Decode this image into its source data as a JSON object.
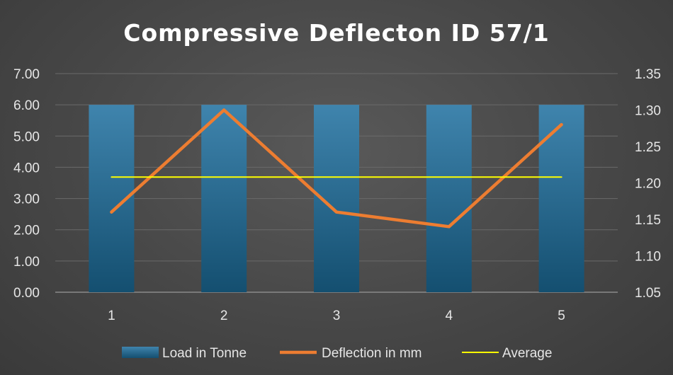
{
  "chart_data": {
    "type": "bar",
    "title": "Compressive Deflecton ID 57/1",
    "categories": [
      "1",
      "2",
      "3",
      "4",
      "5"
    ],
    "y_left": {
      "min": 0,
      "max": 7,
      "step": 1,
      "ticks": [
        "0.00",
        "1.00",
        "2.00",
        "3.00",
        "4.00",
        "5.00",
        "6.00",
        "7.00"
      ]
    },
    "y_right": {
      "min": 1.05,
      "max": 1.35,
      "step": 0.05,
      "ticks": [
        "1.05",
        "1.10",
        "1.15",
        "1.20",
        "1.25",
        "1.30",
        "1.35"
      ]
    },
    "series": [
      {
        "name": "Load in Tonne",
        "type": "bar",
        "axis": "left",
        "color": "#2e6f95",
        "values": [
          6,
          6,
          6,
          6,
          6
        ]
      },
      {
        "name": "Deflection in mm",
        "type": "line",
        "axis": "right",
        "color": "#ed7d31",
        "values": [
          1.16,
          1.3,
          1.16,
          1.14,
          1.28
        ]
      },
      {
        "name": "Average",
        "type": "line",
        "axis": "right",
        "color": "#ffff00",
        "values": [
          1.208,
          1.208,
          1.208,
          1.208,
          1.208
        ]
      }
    ],
    "grid": true,
    "legend": "bottom"
  }
}
